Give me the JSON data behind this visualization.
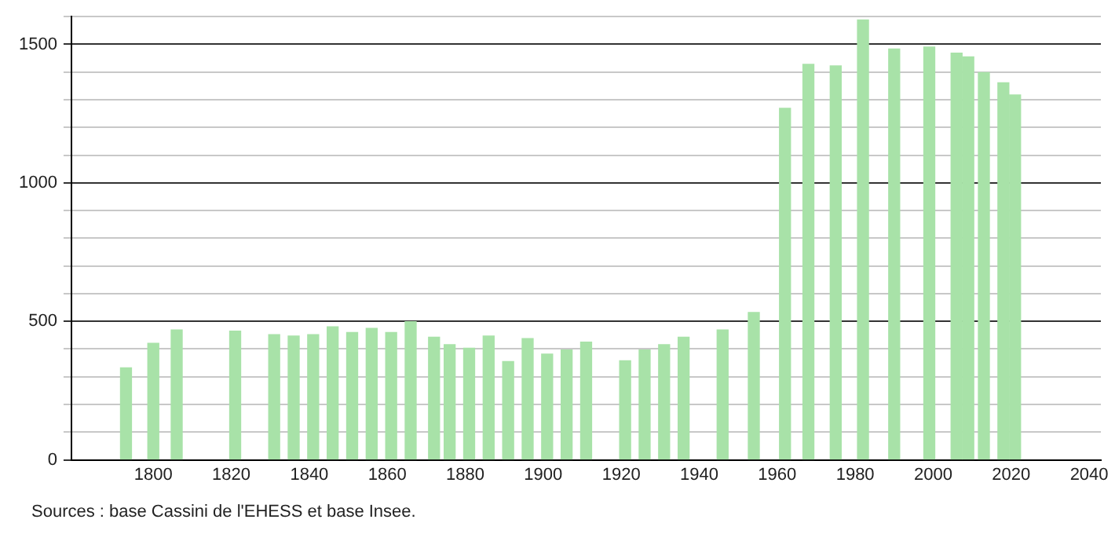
{
  "chart_data": {
    "type": "bar",
    "color": "#a8e2a8",
    "x": [
      1793,
      1800,
      1806,
      1821,
      1831,
      1836,
      1841,
      1846,
      1851,
      1856,
      1861,
      1866,
      1872,
      1876,
      1881,
      1886,
      1891,
      1896,
      1901,
      1906,
      1911,
      1921,
      1926,
      1931,
      1936,
      1946,
      1954,
      1962,
      1968,
      1975,
      1982,
      1990,
      1999,
      2006,
      2009,
      2013,
      2018,
      2021
    ],
    "values": [
      332,
      421,
      469,
      465,
      452,
      447,
      452,
      480,
      460,
      475,
      460,
      499,
      443,
      416,
      403,
      447,
      355,
      438,
      382,
      397,
      425,
      358,
      397,
      416,
      443,
      469,
      532,
      1269,
      1428,
      1422,
      1588,
      1483,
      1490,
      1468,
      1455,
      1398,
      1361,
      1317
    ],
    "xlim": [
      1779,
      2043
    ],
    "xticks": [
      1800,
      1820,
      1840,
      1860,
      1880,
      1900,
      1920,
      1940,
      1960,
      1980,
      2000,
      2020,
      2040
    ],
    "ylim": [
      0,
      1600
    ],
    "yticks": [
      0,
      {
        "value": 100,
        "label": null
      },
      {
        "value": 200,
        "label": null
      },
      {
        "value": 300,
        "label": null
      },
      {
        "value": 400,
        "label": null
      },
      500,
      {
        "value": 600,
        "label": null
      },
      {
        "value": 700,
        "label": null
      },
      {
        "value": 800,
        "label": null
      },
      {
        "value": 900,
        "label": null
      },
      1000,
      {
        "value": 1100,
        "label": null
      },
      {
        "value": 1200,
        "label": null
      },
      {
        "value": 1300,
        "label": null
      },
      {
        "value": 1400,
        "label": null
      },
      1500,
      {
        "value": 1600,
        "label": null
      }
    ],
    "grid": "y",
    "legend": false,
    "annotations": [
      "Sources : base Cassini de l'EHESS et base Insee."
    ]
  }
}
